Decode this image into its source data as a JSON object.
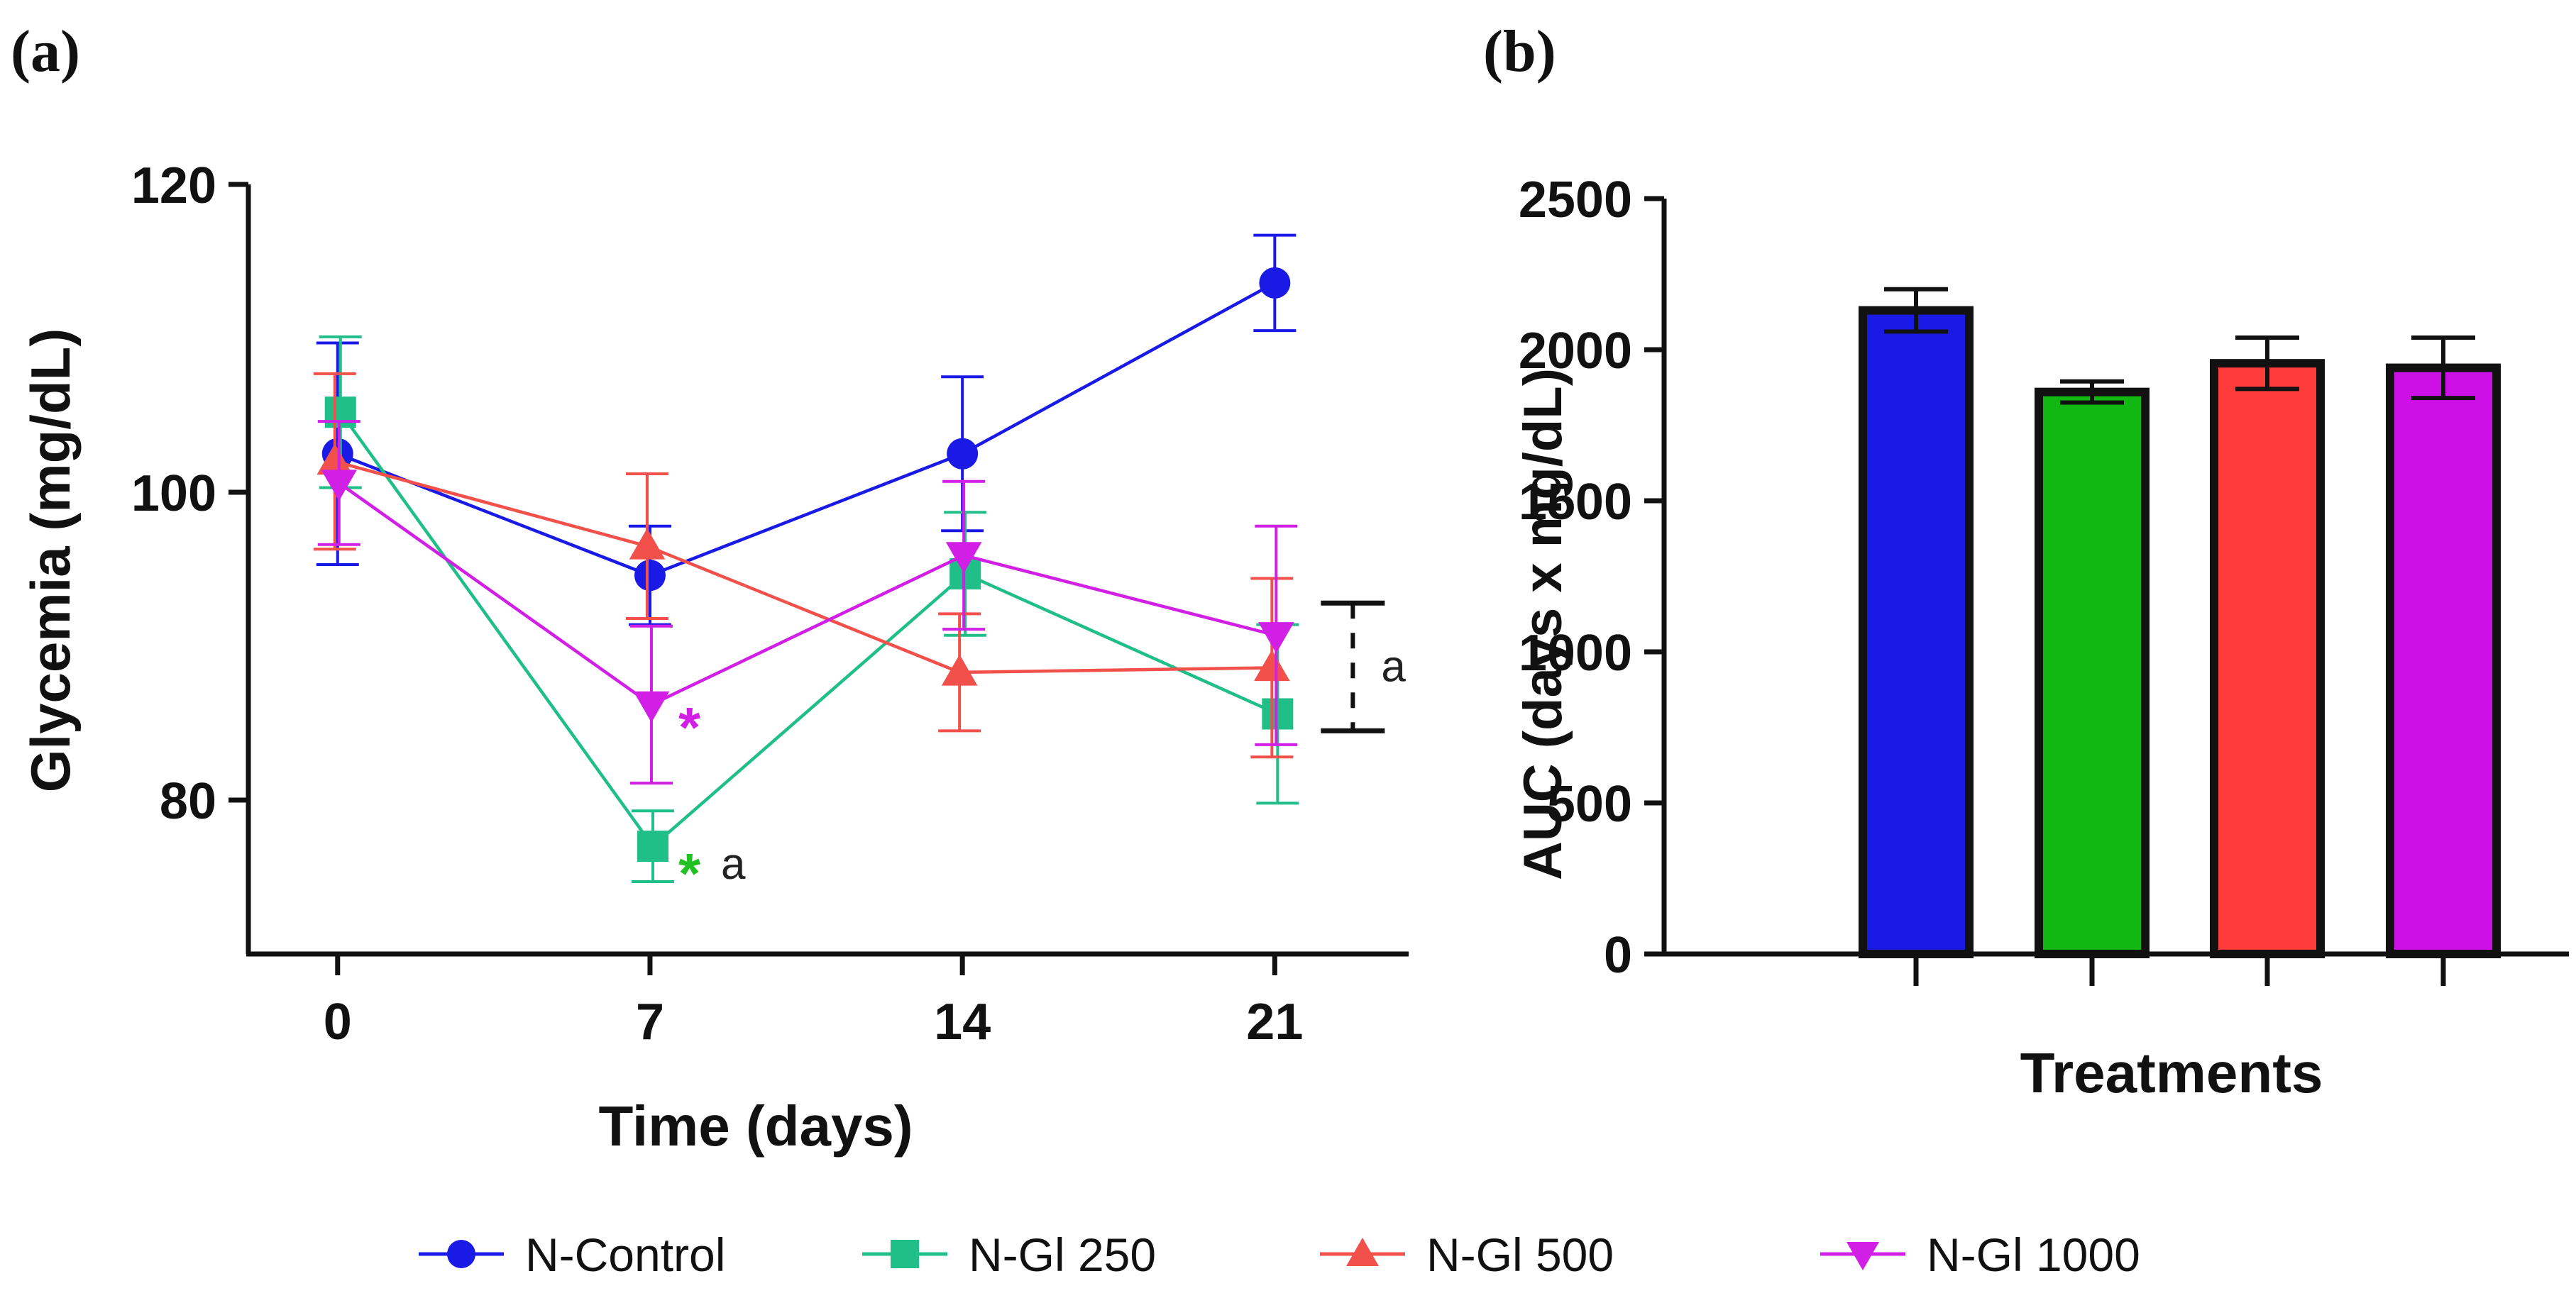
{
  "panel_a": {
    "label": "(a)",
    "chart_data": {
      "type": "line",
      "xlabel": "Time (days)",
      "ylabel": "Glycemia (mg/dL)",
      "x": [
        0,
        7,
        14,
        21
      ],
      "xlim": [
        -2,
        24
      ],
      "ylim": [
        70,
        120
      ],
      "xticks": [
        "0",
        "7",
        "14",
        "21"
      ],
      "yticks": [
        "80",
        "100",
        "120"
      ],
      "series": [
        {
          "name": "N-Control",
          "color": "#1a1ae6",
          "marker": "circle",
          "values": [
            102.5,
            94.6,
            102.5,
            113.6
          ],
          "errors": [
            7.2,
            3.2,
            5.0,
            3.1
          ]
        },
        {
          "name": "N-Gl 250",
          "color": "#1fbf87",
          "marker": "square",
          "values": [
            105.2,
            77.0,
            94.7,
            85.6
          ],
          "errors": [
            4.9,
            2.3,
            4.0,
            5.8
          ]
        },
        {
          "name": "N-Gl 500",
          "color": "#f2504a",
          "marker": "triangle-up",
          "values": [
            102.0,
            96.5,
            88.3,
            88.6
          ],
          "errors": [
            5.7,
            4.7,
            3.8,
            5.8
          ]
        },
        {
          "name": "N-Gl 1000",
          "color": "#d11fe6",
          "marker": "triangle-down",
          "values": [
            100.6,
            86.2,
            95.9,
            90.7
          ],
          "errors": [
            4.0,
            5.1,
            4.8,
            7.1
          ]
        }
      ],
      "annotations": [
        {
          "text": "*",
          "color": "#d11fe6",
          "x": 7,
          "y": 85.3
        },
        {
          "text": "*",
          "color": "#22c022",
          "x": 7,
          "y": 75.8
        },
        {
          "text": "a",
          "color": "#222222",
          "x": 7,
          "y": 75.8
        },
        {
          "text": "a",
          "color": "#222222",
          "x": 21,
          "y": 88.6,
          "bracket_range": [
            84.5,
            92.8
          ]
        }
      ]
    }
  },
  "panel_b": {
    "label": "(b)",
    "chart_data": {
      "type": "bar",
      "xlabel": "Treatments",
      "ylabel": "AUC (days x mg/dL)",
      "categories": [
        "N-Control",
        "N-Gl 250",
        "N-Gl 500",
        "N-Gl 1000"
      ],
      "values": [
        2130,
        1860,
        1955,
        1940
      ],
      "errors": [
        70,
        35,
        85,
        100
      ],
      "colors": [
        "#1a1ae6",
        "#11b811",
        "#ff3c3c",
        "#cc10e6"
      ],
      "ylim": [
        0,
        2500
      ],
      "yticks": [
        "0",
        "500",
        "1000",
        "1500",
        "2000",
        "2500"
      ]
    }
  },
  "legend": {
    "items": [
      {
        "label": "N-Control",
        "color": "#1a1ae6",
        "marker": "circle"
      },
      {
        "label": "N-Gl 250",
        "color": "#1fbf87",
        "marker": "square"
      },
      {
        "label": "N-Gl 500",
        "color": "#f2504a",
        "marker": "triangle-up"
      },
      {
        "label": "N-Gl 1000",
        "color": "#d11fe6",
        "marker": "triangle-down"
      }
    ]
  }
}
